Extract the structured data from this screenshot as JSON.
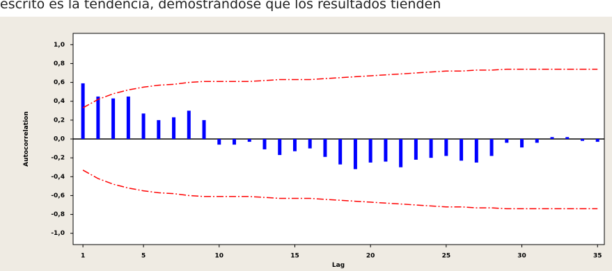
{
  "document_text": "escrito es la tendencia, demostrándose que los resultados tienden",
  "chart_data": {
    "type": "bar",
    "xlabel": "Lag",
    "ylabel": "Autocorrelation",
    "x": [
      1,
      2,
      3,
      4,
      5,
      6,
      7,
      8,
      9,
      10,
      11,
      12,
      13,
      14,
      15,
      16,
      17,
      18,
      19,
      20,
      21,
      22,
      23,
      24,
      25,
      26,
      27,
      28,
      29,
      30,
      31,
      32,
      33,
      34,
      35
    ],
    "values": [
      0.59,
      0.45,
      0.43,
      0.45,
      0.27,
      0.2,
      0.23,
      0.3,
      0.2,
      -0.06,
      -0.06,
      -0.03,
      -0.11,
      -0.17,
      -0.13,
      -0.1,
      -0.19,
      -0.27,
      -0.32,
      -0.25,
      -0.24,
      -0.3,
      -0.22,
      -0.2,
      -0.18,
      -0.23,
      -0.25,
      -0.18,
      -0.04,
      -0.09,
      -0.04,
      0.02,
      0.02,
      -0.02,
      -0.03
    ],
    "color": "#0000ff",
    "series": [
      {
        "color": "#ff0000",
        "values": [
          0.33,
          0.42,
          0.48,
          0.52,
          0.55,
          0.57,
          0.58,
          0.6,
          0.61,
          0.61,
          0.61,
          0.61,
          0.62,
          0.63,
          0.63,
          0.63,
          0.64,
          0.65,
          0.66,
          0.67,
          0.68,
          0.69,
          0.7,
          0.71,
          0.72,
          0.72,
          0.73,
          0.73,
          0.74,
          0.74,
          0.74,
          0.74,
          0.74,
          0.74,
          0.74
        ]
      },
      {
        "color": "#ff0000",
        "values": [
          -0.33,
          -0.42,
          -0.48,
          -0.52,
          -0.55,
          -0.57,
          -0.58,
          -0.6,
          -0.61,
          -0.61,
          -0.61,
          -0.61,
          -0.62,
          -0.63,
          -0.63,
          -0.63,
          -0.64,
          -0.65,
          -0.66,
          -0.67,
          -0.68,
          -0.69,
          -0.7,
          -0.71,
          -0.72,
          -0.72,
          -0.73,
          -0.73,
          -0.74,
          -0.74,
          -0.74,
          -0.74,
          -0.74,
          -0.74,
          -0.74
        ]
      }
    ],
    "xlim": [
      0.35,
      35.45
    ],
    "xticks": [
      1,
      5,
      10,
      15,
      20,
      25,
      30,
      35
    ],
    "ylim": [
      -1.12,
      1.12
    ],
    "yticks": [
      {
        "value": 1.0,
        "label": "1,0"
      },
      {
        "value": 0.8,
        "label": "0,8"
      },
      {
        "value": 0.6,
        "label": "0,6"
      },
      {
        "value": 0.4,
        "label": "0,4"
      },
      {
        "value": 0.2,
        "label": "0,2"
      },
      {
        "value": 0,
        "label": "0,0"
      },
      {
        "value": -0.2,
        "label": "-0,2"
      },
      {
        "value": -0.4,
        "label": "-0,4"
      },
      {
        "value": -0.6,
        "label": "-0,6"
      },
      {
        "value": -0.8,
        "label": "-0,8"
      },
      {
        "value": -1.0,
        "label": "-1,0"
      }
    ]
  }
}
